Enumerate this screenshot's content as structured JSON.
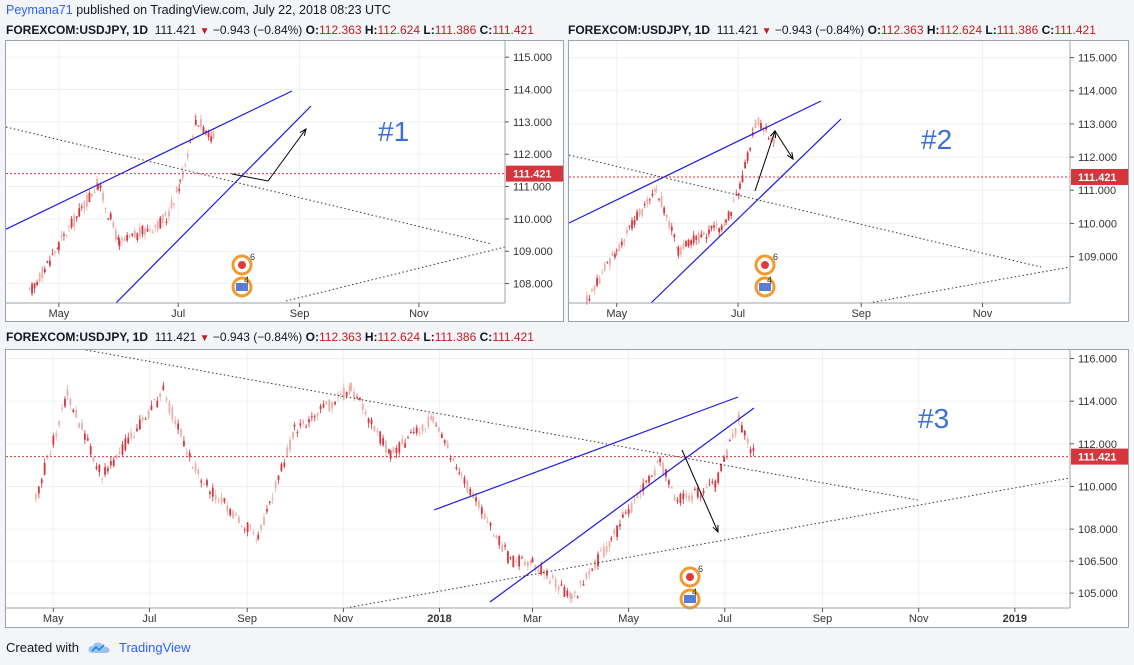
{
  "header": {
    "author": "Peymana71",
    "published_text": "published on TradingView.com, July 22, 2018 08:23 UTC"
  },
  "footer": {
    "created_with": "Created with",
    "brand": "TradingView",
    "logo_icon": "tradingview-cloud-icon"
  },
  "colors": {
    "up_candle": "#e8b0a8",
    "down_candle": "#d6353d",
    "trendline": "#1a1ae6",
    "price_line": "#d6353d",
    "label_blue": "#3a6fd8"
  },
  "symbol_info": {
    "symbol": "FOREXCOM:USDJPY, 1D",
    "last": "111.421",
    "change": "−0.943 (−0.84%)",
    "o_label": "O:",
    "o": "112.363",
    "h_label": "H:",
    "h": "112.624",
    "l_label": "L:",
    "l": "111.386",
    "c_label": "C:",
    "c": "111.421"
  },
  "chart_data": [
    {
      "type": "line",
      "title": "#1",
      "price_label": "111.421",
      "y_ticks": [
        "115.000",
        "114.000",
        "113.000",
        "112.000",
        "111.000",
        "110.000",
        "109.000",
        "108.000"
      ],
      "ylim": [
        107.4,
        115.5
      ],
      "x_ticks": [
        "May",
        "Jul",
        "Sep",
        "Nov"
      ],
      "series": [
        {
          "x": [
            "2018-04-16",
            "2018-05-01",
            "2018-05-21",
            "2018-06-01",
            "2018-06-25",
            "2018-07-02",
            "2018-07-10",
            "2018-07-19",
            "2018-07-20"
          ],
          "values": [
            107.7,
            109.2,
            111.1,
            109.2,
            110.0,
            111.1,
            113.1,
            112.5,
            111.4
          ]
        }
      ],
      "drawings": [
        "ascending channel (blue)",
        "dotted descending trendline",
        "dotted ascending trendline",
        "arrow projection up"
      ]
    },
    {
      "type": "line",
      "title": "#2",
      "price_label": "111.421",
      "y_ticks": [
        "115.000",
        "114.000",
        "113.000",
        "112.000",
        "111.000",
        "110.000",
        "109.000"
      ],
      "ylim": [
        107.6,
        115.5
      ],
      "x_ticks": [
        "May",
        "Jul",
        "Sep",
        "Nov"
      ],
      "series": [
        {
          "x": [
            "2018-04-16",
            "2018-05-01",
            "2018-05-21",
            "2018-06-01",
            "2018-06-25",
            "2018-07-02",
            "2018-07-10",
            "2018-07-19",
            "2018-07-20"
          ],
          "values": [
            107.7,
            109.2,
            111.1,
            109.2,
            110.0,
            111.1,
            113.1,
            112.5,
            111.4
          ]
        }
      ],
      "drawings": [
        "ascending channel (blue)",
        "dotted descending trendline",
        "dotted ascending trendline",
        "arrows up then down"
      ]
    },
    {
      "type": "line",
      "title": "#3",
      "price_label": "111.421",
      "y_ticks": [
        "116.000",
        "114.000",
        "112.000",
        "110.000",
        "108.000",
        "106.500",
        "105.000"
      ],
      "ylim": [
        104.3,
        116.4
      ],
      "x_ticks": [
        "May",
        "Jul",
        "Sep",
        "Nov",
        "2018",
        "Mar",
        "May",
        "Jul",
        "Sep",
        "Nov",
        "2019"
      ],
      "series": [
        {
          "x": [
            "2017-04-20",
            "2017-05-10",
            "2017-06-01",
            "2017-07-10",
            "2017-08-01",
            "2017-09-08",
            "2017-10-01",
            "2017-11-06",
            "2017-12-01",
            "2017-12-28",
            "2018-01-15",
            "2018-02-15",
            "2018-03-01",
            "2018-03-26",
            "2018-04-20",
            "2018-05-21",
            "2018-06-01",
            "2018-06-25",
            "2018-07-10",
            "2018-07-20"
          ],
          "values": [
            109.5,
            114.3,
            110.5,
            114.4,
            110.5,
            107.5,
            112.6,
            114.6,
            111.5,
            113.2,
            110.5,
            106.5,
            106.5,
            104.7,
            107.5,
            111.2,
            109.3,
            110.0,
            113.1,
            111.4
          ]
        }
      ],
      "drawings": [
        "ascending channel (blue)",
        "dotted descending trendline",
        "dotted ascending trendline",
        "arrow projection down"
      ]
    }
  ]
}
